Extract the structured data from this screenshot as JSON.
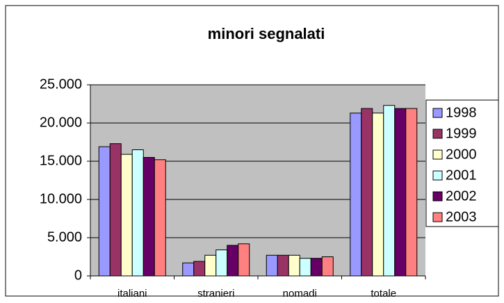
{
  "chart_data": {
    "type": "bar",
    "title": "minori segnalati",
    "categories": [
      "italiani",
      "stranieri",
      "nomadi",
      "totale"
    ],
    "series": [
      {
        "name": "1998",
        "color": "#9999ff",
        "values": [
          16900,
          1700,
          2700,
          21300
        ]
      },
      {
        "name": "1999",
        "color": "#993366",
        "values": [
          17300,
          1900,
          2700,
          21900
        ]
      },
      {
        "name": "2000",
        "color": "#ffffcc",
        "values": [
          15900,
          2700,
          2700,
          21300
        ]
      },
      {
        "name": "2001",
        "color": "#ccffff",
        "values": [
          16500,
          3400,
          2300,
          22300
        ]
      },
      {
        "name": "2002",
        "color": "#660066",
        "values": [
          15500,
          4000,
          2300,
          21900
        ]
      },
      {
        "name": "2003",
        "color": "#ff8080",
        "values": [
          15200,
          4200,
          2500,
          21900
        ]
      }
    ],
    "ylim": [
      0,
      25000
    ],
    "yticks": [
      0,
      {
        "value": 5000,
        "label": "5.000"
      },
      {
        "value": 10000,
        "label": "10.000"
      },
      {
        "value": 15000,
        "label": "15.000"
      },
      {
        "value": 20000,
        "label": "20.000"
      },
      {
        "value": 25000,
        "label": "25.000"
      }
    ],
    "grid": true,
    "legend": "right"
  }
}
